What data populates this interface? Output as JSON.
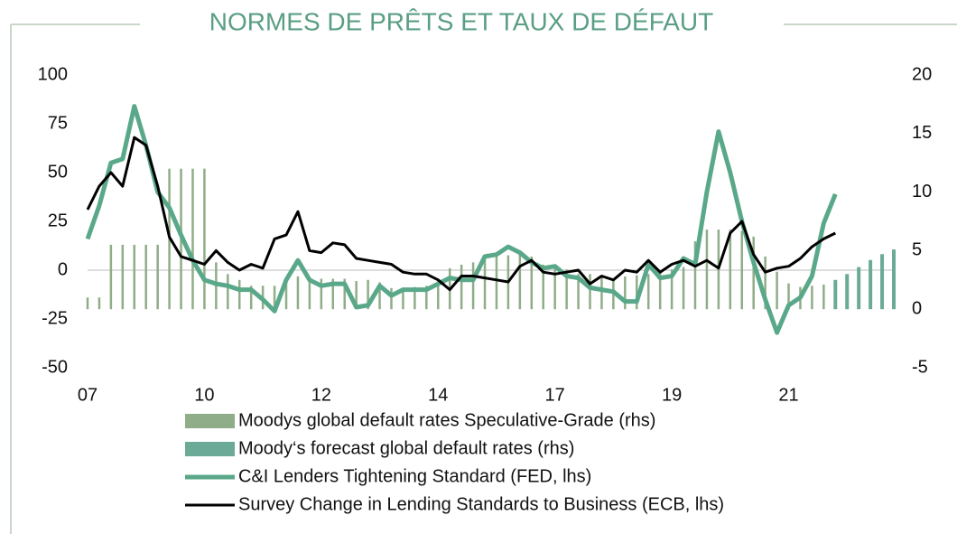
{
  "chart_data": {
    "type": "line",
    "title": "NORMES DE PRÊTS ET TAUX DE DÉFAUT",
    "categories": [
      "07",
      null,
      null,
      null,
      null,
      null,
      null,
      null,
      null,
      null,
      "10",
      null,
      null,
      null,
      null,
      null,
      null,
      null,
      null,
      null,
      "12",
      null,
      null,
      null,
      null,
      null,
      null,
      null,
      null,
      null,
      "14",
      null,
      null,
      null,
      null,
      null,
      null,
      null,
      null,
      null,
      "17",
      null,
      null,
      null,
      null,
      null,
      null,
      null,
      null,
      null,
      "19",
      null,
      null,
      null,
      null,
      null,
      null,
      null,
      null,
      null,
      "21",
      null,
      null,
      null,
      null,
      null,
      null,
      null,
      null,
      null
    ],
    "ylim": [
      -50,
      100
    ],
    "yticks": [
      -50,
      -25,
      0,
      25,
      50,
      75,
      100
    ],
    "y2lim": [
      -5,
      20
    ],
    "y2ticks": [
      -5,
      0,
      5,
      10,
      15,
      20
    ],
    "series": [
      {
        "name": "Moodys global default rates Speculative-Grade (rhs)",
        "type": "bar",
        "axis": "y2",
        "color": "#8fad88",
        "values": [
          1,
          1,
          5.5,
          5.5,
          5.5,
          5.5,
          5.5,
          12,
          12,
          12,
          12,
          4,
          3,
          2.5,
          2,
          2,
          2,
          2.5,
          2.8,
          2.7,
          2.6,
          2.6,
          2.6,
          2.4,
          2.5,
          2.3,
          1.8,
          1.8,
          1.9,
          2,
          2.5,
          3.5,
          3.8,
          4,
          4.3,
          4.5,
          4.6,
          4.7,
          4.5,
          3.8,
          3.6,
          3.4,
          3,
          3,
          2.7,
          2.6,
          2.8,
          2.9,
          3,
          3.2,
          3.4,
          3.6,
          5.8,
          6.8,
          6.8,
          6.8,
          6.7,
          6.2,
          4.5,
          3.2,
          2.2,
          1.9,
          2,
          2.1,
          null,
          null,
          null,
          null,
          null,
          null
        ]
      },
      {
        "name": "Moody‘s forecast global default rates (rhs)",
        "type": "bar",
        "axis": "y2",
        "color": "#6aaa96",
        "values": [
          null,
          null,
          null,
          null,
          null,
          null,
          null,
          null,
          null,
          null,
          null,
          null,
          null,
          null,
          null,
          null,
          null,
          null,
          null,
          null,
          null,
          null,
          null,
          null,
          null,
          null,
          null,
          null,
          null,
          null,
          null,
          null,
          null,
          null,
          null,
          null,
          null,
          null,
          null,
          null,
          null,
          null,
          null,
          null,
          null,
          null,
          null,
          null,
          null,
          null,
          null,
          null,
          null,
          null,
          null,
          null,
          null,
          null,
          null,
          null,
          null,
          null,
          null,
          null,
          2.5,
          3,
          3.6,
          4.2,
          4.7,
          5.1
        ]
      },
      {
        "name": "C&I Lenders Tightening Standard (FED, lhs)",
        "type": "line",
        "color": "#5aa88a",
        "width": 5,
        "values": [
          16,
          33,
          55,
          57,
          84,
          64,
          40,
          32,
          18,
          5,
          -5,
          -7,
          -8,
          -10,
          -10,
          -15,
          -21,
          -5,
          5,
          -5,
          -8,
          -7,
          -7,
          -19,
          -18,
          -8,
          -13,
          -10,
          -10,
          -10,
          -7,
          -4,
          -5,
          -5,
          7,
          8,
          12,
          9,
          4,
          1,
          2,
          -3,
          -4,
          -9,
          -10,
          -11,
          -16,
          -16,
          3,
          -4,
          -3,
          6,
          3,
          40,
          71,
          50,
          25,
          4,
          -15,
          -32,
          -18,
          -14,
          -3,
          24,
          39,
          null,
          null,
          null,
          null,
          null
        ]
      },
      {
        "name": "Survey Change in Lending Standards to Business (ECB, lhs)",
        "type": "line",
        "color": "#000000",
        "width": 3,
        "values": [
          31,
          43,
          50,
          43,
          68,
          64,
          43,
          17,
          7,
          5,
          3,
          10,
          4,
          0,
          3,
          1,
          16,
          18,
          30,
          10,
          9,
          14,
          13,
          6,
          5,
          4,
          3,
          -1,
          -2,
          -2,
          -5,
          -10,
          -3,
          -3,
          -4,
          -5,
          -6,
          2,
          5,
          -1,
          -2,
          -1,
          0,
          -7,
          -3,
          -5,
          0,
          -1,
          5,
          -1,
          3,
          5,
          2,
          5,
          1,
          19,
          25,
          8,
          -1,
          1,
          2,
          6,
          12,
          16,
          19,
          null,
          null,
          null,
          null,
          null
        ]
      }
    ]
  }
}
